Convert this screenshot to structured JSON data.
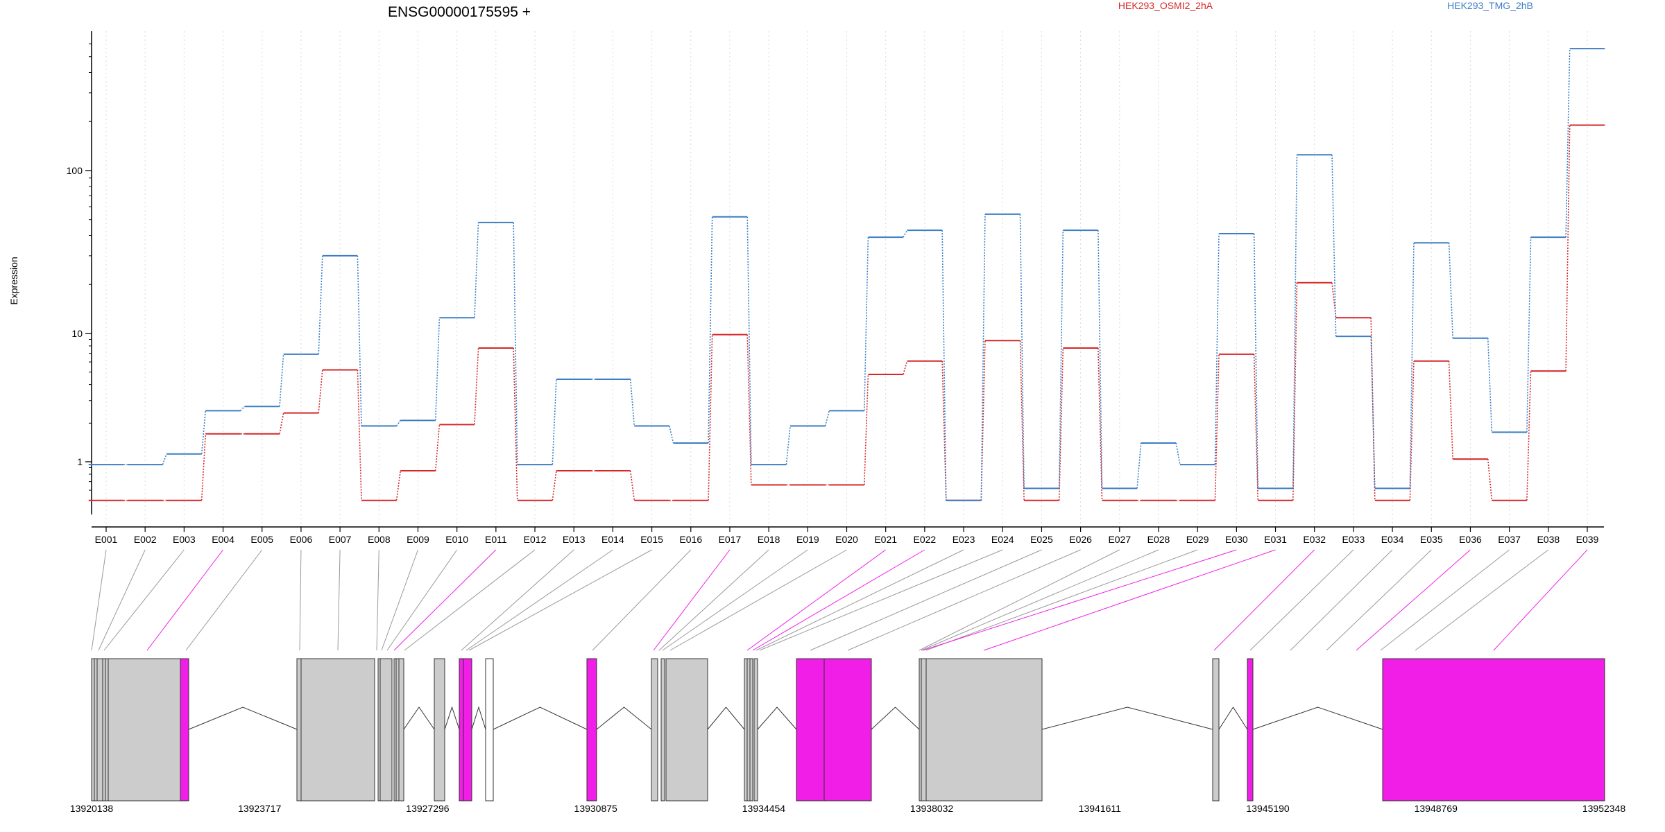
{
  "chart_data": {
    "type": "line",
    "title": "ENSG00000175595 +",
    "ylabel": "Expression",
    "y_scale": "log",
    "ylim": [
      0.5,
      600
    ],
    "y_ticks": [
      1,
      10,
      100
    ],
    "y_tick_labels": [
      "1",
      "10",
      "100"
    ],
    "grid": "vertical dotted lines at each exon",
    "legend_placement": "top",
    "categories": [
      "E001",
      "E002",
      "E003",
      "E004",
      "E005",
      "E006",
      "E007",
      "E008",
      "E009",
      "E010",
      "E011",
      "E012",
      "E013",
      "E014",
      "E015",
      "E016",
      "E017",
      "E018",
      "E019",
      "E020",
      "E021",
      "E022",
      "E023",
      "E024",
      "E025",
      "E026",
      "E027",
      "E028",
      "E029",
      "E030",
      "E031",
      "E032",
      "E033",
      "E034",
      "E035",
      "E036",
      "E037",
      "E038",
      "E039"
    ],
    "series": [
      {
        "name": "HEK293_OSMI2_2hA",
        "color": "#d62728",
        "values": [
          0.5,
          0.5,
          0.5,
          1.65,
          1.65,
          2.4,
          5.2,
          0.5,
          0.85,
          1.95,
          7.7,
          0.5,
          0.85,
          0.85,
          0.5,
          0.5,
          9.8,
          0.66,
          0.66,
          0.66,
          4.8,
          6.1,
          0.5,
          8.8,
          0.5,
          7.7,
          0.5,
          0.5,
          0.5,
          6.9,
          0.5,
          20.5,
          12.5,
          0.5,
          6.1,
          1.05,
          0.5,
          5.1,
          190
        ]
      },
      {
        "name": "HEK293_TMG_2hB",
        "color": "#3b7ec4",
        "values": [
          0.95,
          0.95,
          1.15,
          2.5,
          2.7,
          6.9,
          30,
          1.9,
          2.1,
          12.5,
          48,
          0.95,
          4.4,
          4.4,
          1.9,
          1.4,
          52,
          0.95,
          1.9,
          2.5,
          39,
          43,
          0.5,
          54,
          0.62,
          43,
          0.62,
          1.4,
          0.95,
          41,
          0.62,
          125,
          9.5,
          0.62,
          36,
          9.2,
          1.7,
          39,
          560
        ]
      }
    ],
    "gene_model": {
      "genomic_ticks": [
        13920138,
        13923717,
        13927296,
        13930875,
        13934454,
        13938032,
        13941611,
        13945190,
        13948769,
        13952348
      ],
      "highlight_color": "#f01ee6",
      "exon_color": "#cccccc",
      "highlighted_exons": [
        "E004",
        "E011",
        "E017",
        "E021",
        "E022",
        "E030",
        "E031",
        "E032",
        "E036",
        "E039"
      ]
    }
  }
}
